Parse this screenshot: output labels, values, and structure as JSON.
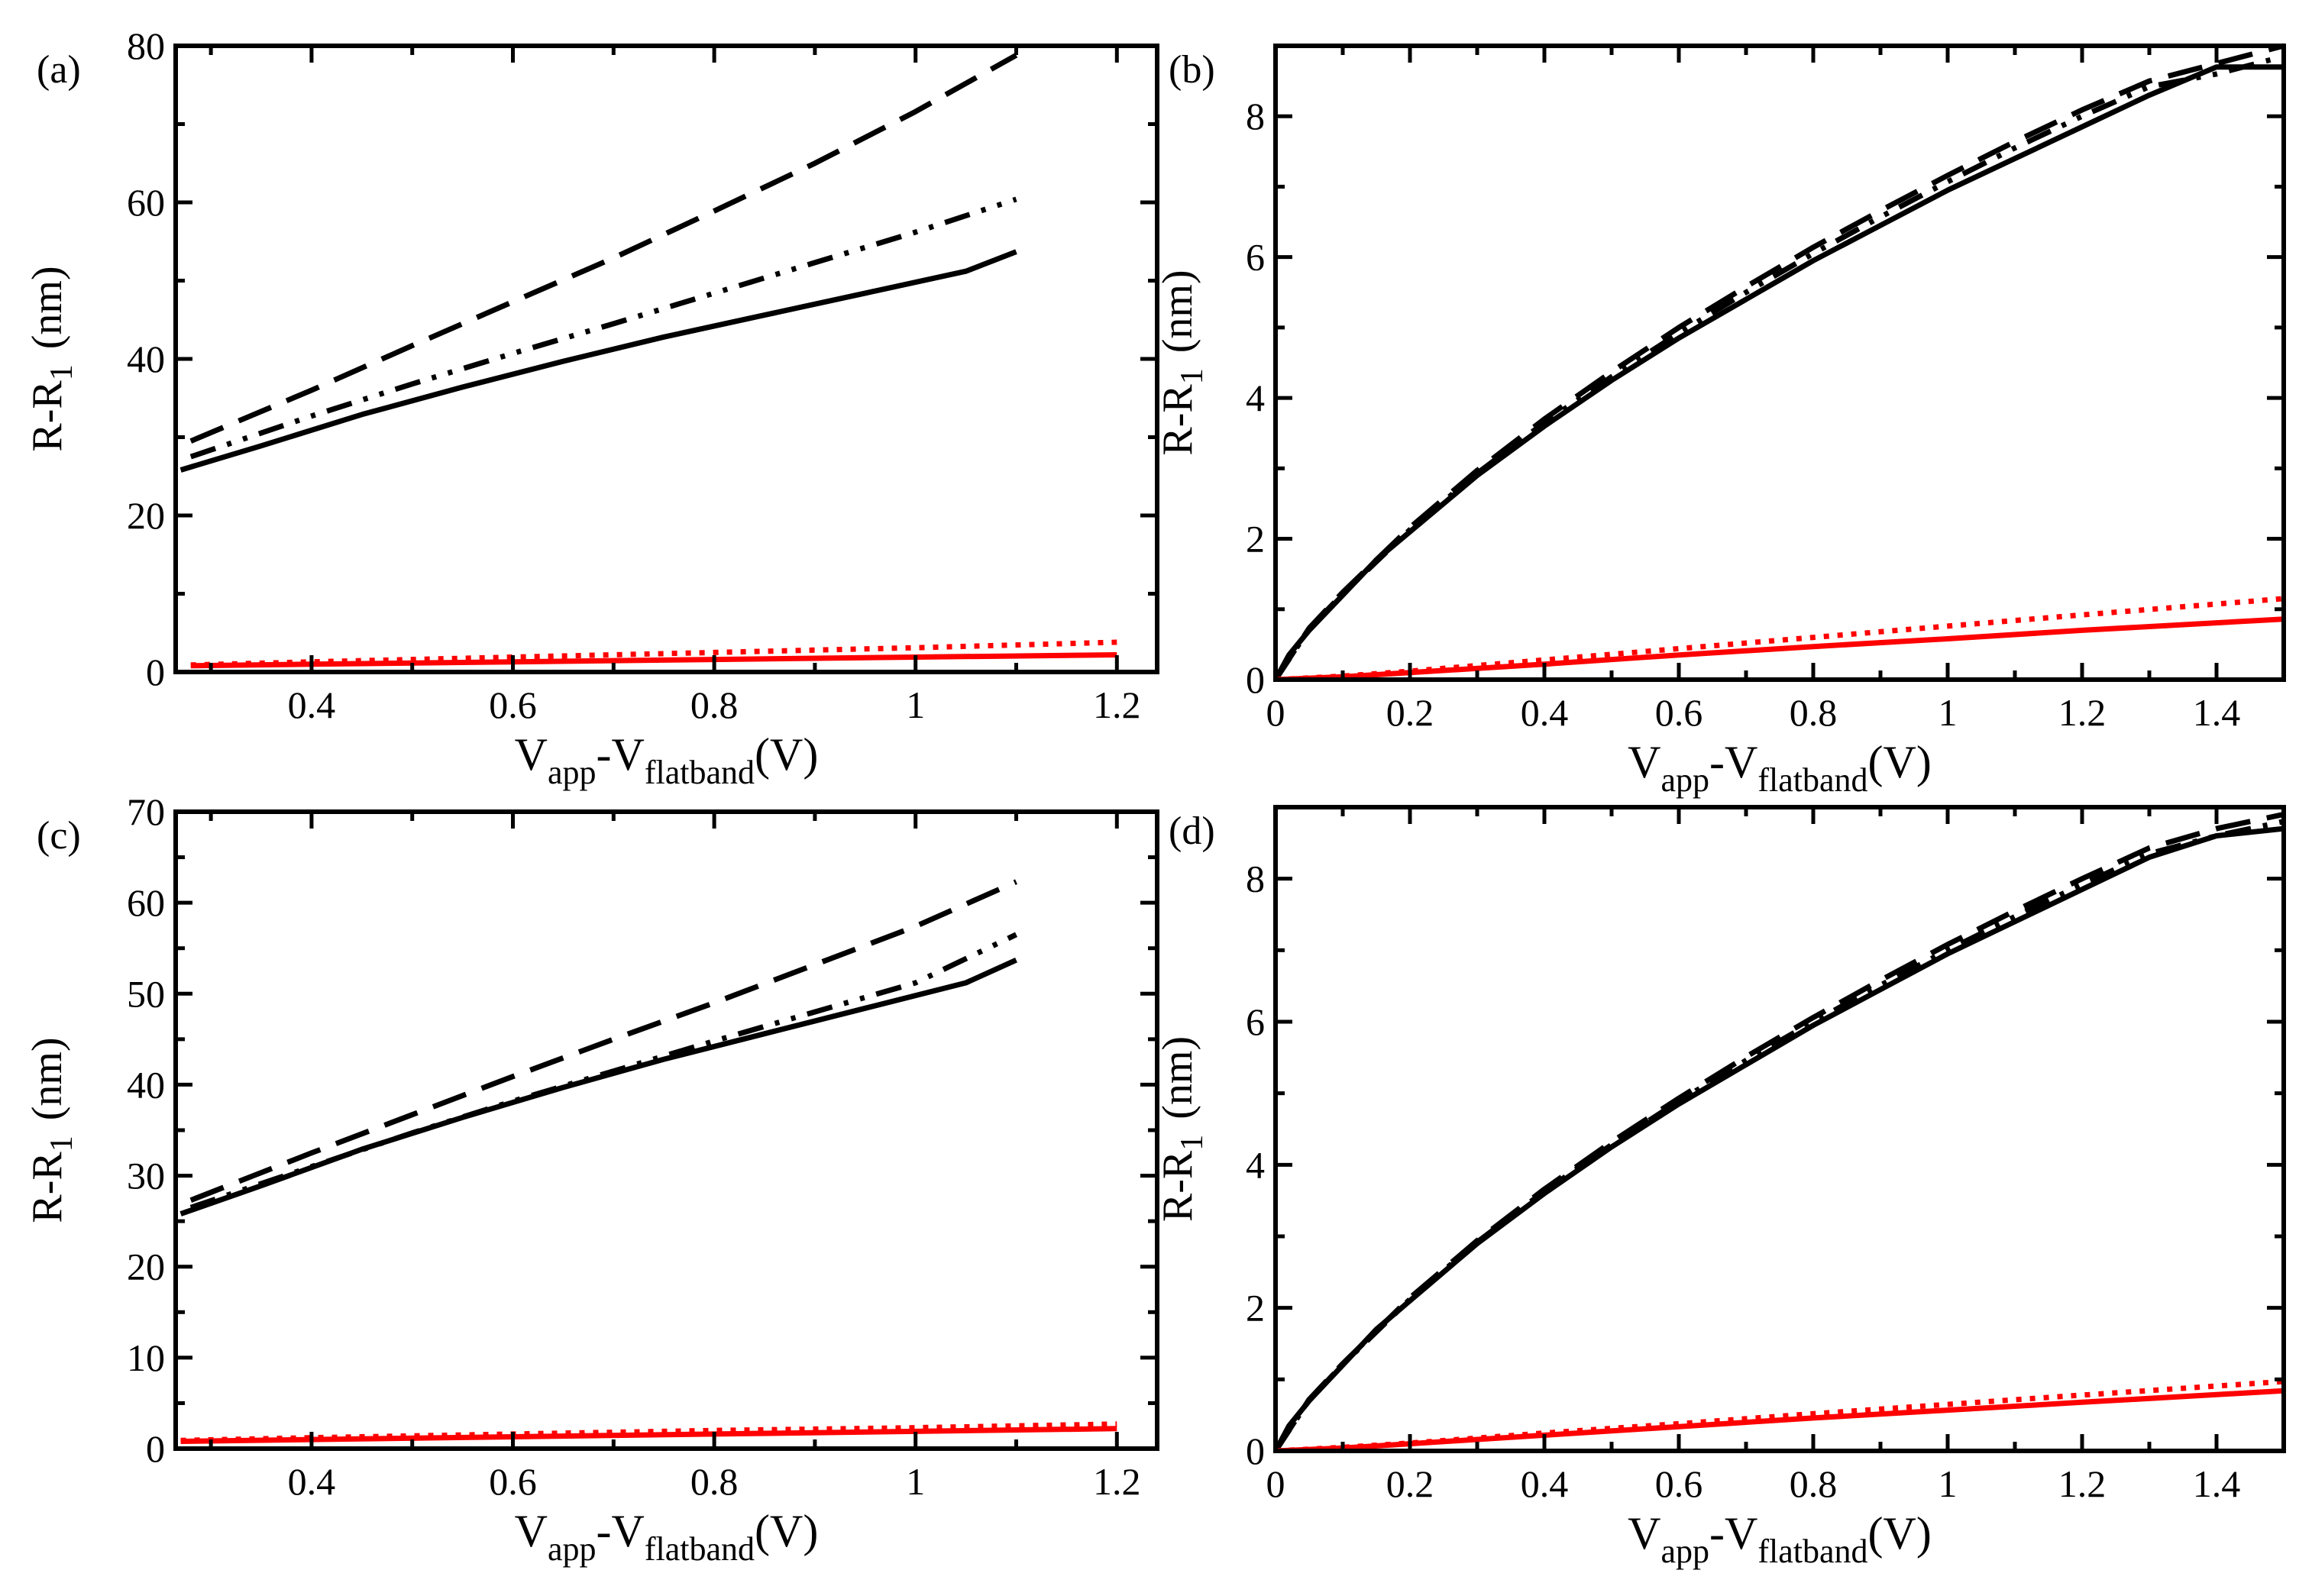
{
  "colors": {
    "black": "#000000",
    "red": "#ff0000",
    "background": "#ffffff"
  },
  "chart_data": [
    {
      "type": "line",
      "panel_label": "(a)",
      "ylabel": "R-R",
      "ylabel_sub": "1",
      "ylabel_unit": "(nm)",
      "xlabel": "V",
      "xlabel_sub1": "app",
      "xlabel_mid": "-V",
      "xlabel_sub2": "flatband",
      "xlabel_unit": "(V)",
      "xlim": [
        0.265,
        1.24
      ],
      "ylim": [
        0,
        80
      ],
      "xticks": [
        0.4,
        0.6,
        0.8,
        1,
        1.2
      ],
      "xtick_labels": [
        "0.4",
        "0.6",
        "0.8",
        "1",
        "1.2"
      ],
      "yticks": [
        0,
        20,
        40,
        60,
        80
      ],
      "ytick_labels": [
        "0",
        "20",
        "40",
        "60",
        "80"
      ],
      "series": [
        {
          "name": "black solid",
          "color": "#000000",
          "style": "solid",
          "x": [
            0.27,
            0.35,
            0.45,
            0.55,
            0.65,
            0.75,
            0.85,
            0.95,
            1.05,
            1.1
          ],
          "values": [
            25.8,
            28.9,
            32.9,
            36.4,
            39.7,
            42.8,
            45.6,
            48.4,
            51.2,
            53.7
          ]
        },
        {
          "name": "black dash-dot-dot",
          "color": "#000000",
          "style": "dashdotdot",
          "x": [
            0.28,
            0.4,
            0.5,
            0.6,
            0.7,
            0.8,
            0.9,
            1.0,
            1.1
          ],
          "values": [
            27.5,
            32.7,
            36.8,
            40.7,
            44.5,
            48.4,
            52.3,
            56.2,
            60.4
          ]
        },
        {
          "name": "black dashed",
          "color": "#000000",
          "style": "dashed",
          "x": [
            0.28,
            0.4,
            0.5,
            0.6,
            0.7,
            0.8,
            0.9,
            1.0,
            1.1
          ],
          "values": [
            29.5,
            36.0,
            41.7,
            47.3,
            52.9,
            58.9,
            65.0,
            71.6,
            78.8
          ]
        },
        {
          "name": "red solid",
          "color": "#ff0000",
          "style": "solid",
          "x": [
            0.28,
            0.4,
            0.6,
            0.8,
            1.0,
            1.2
          ],
          "values": [
            0.8,
            1.0,
            1.3,
            1.6,
            1.9,
            2.2
          ]
        },
        {
          "name": "red dotted",
          "color": "#ff0000",
          "style": "dotted",
          "x": [
            0.28,
            0.4,
            0.6,
            0.8,
            1.0,
            1.2
          ],
          "values": [
            0.9,
            1.3,
            1.9,
            2.5,
            3.1,
            3.8
          ]
        }
      ]
    },
    {
      "type": "line",
      "panel_label": "(b)",
      "ylabel": "R-R",
      "ylabel_sub": "1",
      "ylabel_unit": "(nm)",
      "xlabel": "V",
      "xlabel_sub1": "app",
      "xlabel_mid": "-V",
      "xlabel_sub2": "flatband",
      "xlabel_unit": "(V)",
      "xlim": [
        0,
        1.5
      ],
      "ylim": [
        0,
        9
      ],
      "xticks": [
        0,
        0.2,
        0.4,
        0.6,
        0.8,
        1,
        1.2,
        1.4
      ],
      "xtick_labels": [
        "0",
        "0.2",
        "0.4",
        "0.6",
        "0.8",
        "1",
        "1.2",
        "1.4"
      ],
      "yticks": [
        0,
        2,
        4,
        6,
        8
      ],
      "ytick_labels": [
        "0",
        "2",
        "4",
        "6",
        "8"
      ],
      "series": [
        {
          "name": "black solid",
          "color": "#000000",
          "style": "solid",
          "x": [
            0,
            0.02,
            0.05,
            0.1,
            0.15,
            0.2,
            0.3,
            0.4,
            0.5,
            0.6,
            0.7,
            0.8,
            0.9,
            1.0,
            1.1,
            1.2,
            1.3,
            1.4,
            1.5
          ],
          "values": [
            0,
            0.35,
            0.7,
            1.2,
            1.7,
            2.1,
            2.9,
            3.6,
            4.25,
            4.85,
            5.4,
            5.95,
            6.45,
            6.95,
            7.4,
            7.85,
            8.3,
            8.7,
            8.7
          ]
        },
        {
          "name": "black dash-dot-dot",
          "color": "#000000",
          "style": "dashdotdot",
          "x": [
            0,
            0.05,
            0.1,
            0.2,
            0.3,
            0.4,
            0.5,
            0.6,
            0.7,
            0.8,
            0.9,
            1.0,
            1.1,
            1.2,
            1.3,
            1.4,
            1.5
          ],
          "values": [
            0,
            0.72,
            1.22,
            2.13,
            2.93,
            3.65,
            4.3,
            4.92,
            5.5,
            6.05,
            6.57,
            7.07,
            7.55,
            8.0,
            8.42,
            8.6,
            8.85
          ]
        },
        {
          "name": "black dashed",
          "color": "#000000",
          "style": "dashed",
          "x": [
            0,
            0.05,
            0.1,
            0.2,
            0.3,
            0.4,
            0.5,
            0.6,
            0.7,
            0.8,
            0.9,
            1.0,
            1.1,
            1.2,
            1.3,
            1.4,
            1.5
          ],
          "values": [
            0,
            0.73,
            1.24,
            2.16,
            2.97,
            3.7,
            4.37,
            5.0,
            5.58,
            6.14,
            6.66,
            7.16,
            7.64,
            8.09,
            8.5,
            8.75,
            9.0
          ]
        },
        {
          "name": "red solid",
          "color": "#ff0000",
          "style": "solid",
          "x": [
            0,
            0.1,
            0.2,
            0.4,
            0.6,
            0.8,
            1.0,
            1.2,
            1.5
          ],
          "values": [
            0,
            0.04,
            0.1,
            0.22,
            0.35,
            0.47,
            0.58,
            0.7,
            0.86
          ]
        },
        {
          "name": "red dotted",
          "color": "#ff0000",
          "style": "dotted",
          "x": [
            0,
            0.1,
            0.2,
            0.4,
            0.6,
            0.8,
            1.0,
            1.2,
            1.5
          ],
          "values": [
            0,
            0.05,
            0.12,
            0.28,
            0.44,
            0.6,
            0.76,
            0.92,
            1.15
          ]
        }
      ]
    },
    {
      "type": "line",
      "panel_label": "(c)",
      "ylabel": "R-R",
      "ylabel_sub": "1",
      "ylabel_unit": "(nm)",
      "xlabel": "V",
      "xlabel_sub1": "app",
      "xlabel_mid": "-V",
      "xlabel_sub2": "flatband",
      "xlabel_unit": "(V)",
      "xlim": [
        0.265,
        1.24
      ],
      "ylim": [
        0,
        70
      ],
      "xticks": [
        0.4,
        0.6,
        0.8,
        1,
        1.2
      ],
      "xtick_labels": [
        "0.4",
        "0.6",
        "0.8",
        "1",
        "1.2"
      ],
      "yticks": [
        0,
        10,
        20,
        30,
        40,
        50,
        60,
        70
      ],
      "ytick_labels": [
        "0",
        "10",
        "20",
        "30",
        "40",
        "50",
        "60",
        "70"
      ],
      "series": [
        {
          "name": "black solid",
          "color": "#000000",
          "style": "solid",
          "x": [
            0.27,
            0.35,
            0.45,
            0.55,
            0.65,
            0.75,
            0.85,
            0.95,
            1.05,
            1.1
          ],
          "values": [
            25.8,
            28.9,
            32.9,
            36.4,
            39.7,
            42.8,
            45.6,
            48.4,
            51.2,
            53.7
          ]
        },
        {
          "name": "black dash-dot-dot",
          "color": "#000000",
          "style": "dashdotdot",
          "x": [
            0.28,
            0.4,
            0.5,
            0.6,
            0.7,
            0.8,
            0.9,
            1.0,
            1.1
          ],
          "values": [
            26.5,
            31.0,
            34.7,
            38.2,
            41.5,
            44.8,
            48.0,
            51.2,
            56.5
          ]
        },
        {
          "name": "black dashed",
          "color": "#000000",
          "style": "dashed",
          "x": [
            0.28,
            0.4,
            0.5,
            0.6,
            0.7,
            0.8,
            0.9,
            1.0,
            1.1
          ],
          "values": [
            27.3,
            32.5,
            36.7,
            40.9,
            45.0,
            49.0,
            53.2,
            57.4,
            62.3
          ]
        },
        {
          "name": "red solid",
          "color": "#ff0000",
          "style": "solid",
          "x": [
            0.27,
            0.4,
            0.6,
            0.8,
            1.0,
            1.2
          ],
          "values": [
            0.8,
            1.0,
            1.3,
            1.6,
            1.9,
            2.2
          ]
        },
        {
          "name": "red dotted",
          "color": "#ff0000",
          "style": "dotted",
          "x": [
            0.27,
            0.4,
            0.6,
            0.8,
            1.0,
            1.2
          ],
          "values": [
            0.9,
            1.2,
            1.6,
            2.0,
            2.3,
            2.7
          ]
        }
      ]
    },
    {
      "type": "line",
      "panel_label": "(d)",
      "ylabel": "R-R",
      "ylabel_sub": "1",
      "ylabel_unit": "(nm)",
      "xlabel": "V",
      "xlabel_sub1": "app",
      "xlabel_mid": "-V",
      "xlabel_sub2": "flatband",
      "xlabel_unit": "(V)",
      "xlim": [
        0,
        1.5
      ],
      "ylim": [
        0,
        9
      ],
      "xticks": [
        0,
        0.2,
        0.4,
        0.6,
        0.8,
        1,
        1.2,
        1.4
      ],
      "xtick_labels": [
        "0",
        "0.2",
        "0.4",
        "0.6",
        "0.8",
        "1",
        "1.2",
        "1.4"
      ],
      "yticks": [
        0,
        2,
        4,
        6,
        8
      ],
      "ytick_labels": [
        "0",
        "2",
        "4",
        "6",
        "8"
      ],
      "series": [
        {
          "name": "black solid",
          "color": "#000000",
          "style": "solid",
          "x": [
            0,
            0.02,
            0.05,
            0.1,
            0.15,
            0.2,
            0.3,
            0.4,
            0.5,
            0.6,
            0.7,
            0.8,
            0.9,
            1.0,
            1.1,
            1.2,
            1.3,
            1.4,
            1.5
          ],
          "values": [
            0,
            0.35,
            0.7,
            1.2,
            1.7,
            2.1,
            2.9,
            3.6,
            4.25,
            4.85,
            5.4,
            5.95,
            6.45,
            6.95,
            7.4,
            7.85,
            8.3,
            8.6,
            8.7
          ]
        },
        {
          "name": "black dash-dot-dot",
          "color": "#000000",
          "style": "dashdotdot",
          "x": [
            0,
            0.05,
            0.1,
            0.2,
            0.3,
            0.4,
            0.5,
            0.6,
            0.7,
            0.8,
            0.9,
            1.0,
            1.1,
            1.2,
            1.3,
            1.4,
            1.5
          ],
          "values": [
            0,
            0.71,
            1.21,
            2.12,
            2.92,
            3.63,
            4.28,
            4.89,
            5.46,
            6.0,
            6.51,
            7.0,
            7.47,
            7.92,
            8.35,
            8.6,
            8.8
          ]
        },
        {
          "name": "black dashed",
          "color": "#000000",
          "style": "dashed",
          "x": [
            0,
            0.05,
            0.1,
            0.2,
            0.3,
            0.4,
            0.5,
            0.6,
            0.7,
            0.8,
            0.9,
            1.0,
            1.1,
            1.2,
            1.3,
            1.4,
            1.5
          ],
          "values": [
            0,
            0.72,
            1.22,
            2.14,
            2.94,
            3.66,
            4.32,
            4.93,
            5.51,
            6.06,
            6.58,
            7.08,
            7.55,
            8.0,
            8.43,
            8.7,
            8.9
          ]
        },
        {
          "name": "red solid",
          "color": "#ff0000",
          "style": "solid",
          "x": [
            0,
            0.1,
            0.2,
            0.4,
            0.6,
            0.8,
            1.0,
            1.2,
            1.5
          ],
          "values": [
            0,
            0.04,
            0.1,
            0.22,
            0.34,
            0.46,
            0.57,
            0.68,
            0.84
          ]
        },
        {
          "name": "red dotted",
          "color": "#ff0000",
          "style": "dotted",
          "x": [
            0,
            0.1,
            0.2,
            0.4,
            0.6,
            0.8,
            1.0,
            1.2,
            1.5
          ],
          "values": [
            0,
            0.05,
            0.11,
            0.25,
            0.38,
            0.52,
            0.65,
            0.78,
            0.97
          ]
        }
      ]
    }
  ]
}
